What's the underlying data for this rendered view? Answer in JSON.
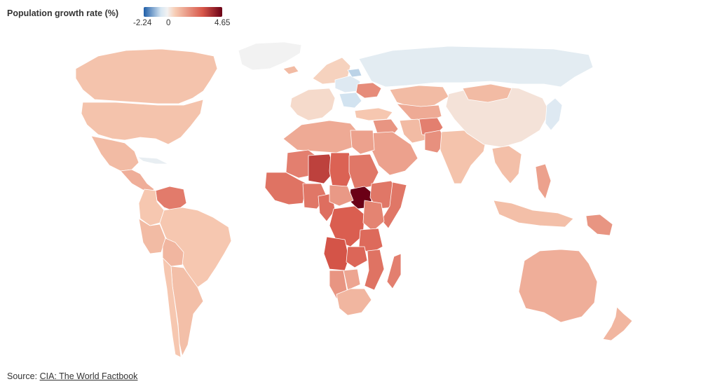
{
  "legend": {
    "title": "Population growth rate (%)",
    "min_label": "-2.24",
    "zero_label": "0",
    "max_label": "4.65",
    "min": -2.24,
    "max": 4.65,
    "colors": {
      "negative_strong": "#1f5ea8",
      "negative_light": "#d6e6f2",
      "neutral": "#f2f2f2",
      "positive_light": "#f7cdb5",
      "positive_mid": "#d8574a",
      "positive_strong": "#6b0016"
    }
  },
  "source": {
    "prefix": "Source: ",
    "link_text": "CIA: The World Factbook"
  },
  "regions": [
    {
      "id": "greenland",
      "value": 0.0
    },
    {
      "id": "canada",
      "value": 0.7
    },
    {
      "id": "usa",
      "value": 0.7
    },
    {
      "id": "mexico",
      "value": 0.9
    },
    {
      "id": "central-america",
      "value": 1.2
    },
    {
      "id": "cuba",
      "value": -0.2
    },
    {
      "id": "venezuela",
      "value": 2.4
    },
    {
      "id": "colombia",
      "value": 0.6
    },
    {
      "id": "brazil",
      "value": 0.6
    },
    {
      "id": "peru",
      "value": 0.9
    },
    {
      "id": "bolivia",
      "value": 1.0
    },
    {
      "id": "argentina",
      "value": 0.8
    },
    {
      "id": "chile",
      "value": 0.6
    },
    {
      "id": "western-europe",
      "value": 0.3
    },
    {
      "id": "scandinavia",
      "value": 0.4
    },
    {
      "id": "iceland",
      "value": 0.9
    },
    {
      "id": "poland",
      "value": -0.4
    },
    {
      "id": "baltics",
      "value": -0.8
    },
    {
      "id": "ukraine",
      "value": 2.0
    },
    {
      "id": "romania",
      "value": -0.6
    },
    {
      "id": "russia",
      "value": -0.3
    },
    {
      "id": "kazakhstan",
      "value": 0.9
    },
    {
      "id": "central-asia",
      "value": 1.3
    },
    {
      "id": "turkey",
      "value": 0.6
    },
    {
      "id": "middle-east",
      "value": 1.8
    },
    {
      "id": "saudi-arabia",
      "value": 1.5
    },
    {
      "id": "iran",
      "value": 0.9
    },
    {
      "id": "afghanistan",
      "value": 2.3
    },
    {
      "id": "pakistan",
      "value": 1.9
    },
    {
      "id": "india",
      "value": 0.7
    },
    {
      "id": "china",
      "value": 0.2
    },
    {
      "id": "mongolia",
      "value": 0.9
    },
    {
      "id": "southeast-asia",
      "value": 0.8
    },
    {
      "id": "japan",
      "value": -0.4
    },
    {
      "id": "philippines",
      "value": 1.5
    },
    {
      "id": "indonesia",
      "value": 0.8
    },
    {
      "id": "papua-new-guinea",
      "value": 1.8
    },
    {
      "id": "australia",
      "value": 1.2
    },
    {
      "id": "new-zealand",
      "value": 1.0
    },
    {
      "id": "north-africa",
      "value": 1.3
    },
    {
      "id": "egypt",
      "value": 1.5
    },
    {
      "id": "mali",
      "value": 2.3
    },
    {
      "id": "niger",
      "value": 3.6
    },
    {
      "id": "chad",
      "value": 3.0
    },
    {
      "id": "sudan",
      "value": 2.5
    },
    {
      "id": "south-sudan",
      "value": 4.65
    },
    {
      "id": "ethiopia",
      "value": 2.5
    },
    {
      "id": "somalia",
      "value": 2.5
    },
    {
      "id": "west-africa",
      "value": 2.6
    },
    {
      "id": "nigeria",
      "value": 2.5
    },
    {
      "id": "cameroon",
      "value": 2.7
    },
    {
      "id": "car",
      "value": 1.7
    },
    {
      "id": "drc",
      "value": 3.1
    },
    {
      "id": "kenya",
      "value": 2.2
    },
    {
      "id": "tanzania",
      "value": 2.8
    },
    {
      "id": "angola",
      "value": 3.3
    },
    {
      "id": "zambia",
      "value": 2.9
    },
    {
      "id": "mozambique",
      "value": 2.6
    },
    {
      "id": "madagascar",
      "value": 2.3
    },
    {
      "id": "namibia",
      "value": 1.8
    },
    {
      "id": "botswana",
      "value": 1.4
    },
    {
      "id": "south-africa",
      "value": 1.0
    }
  ]
}
